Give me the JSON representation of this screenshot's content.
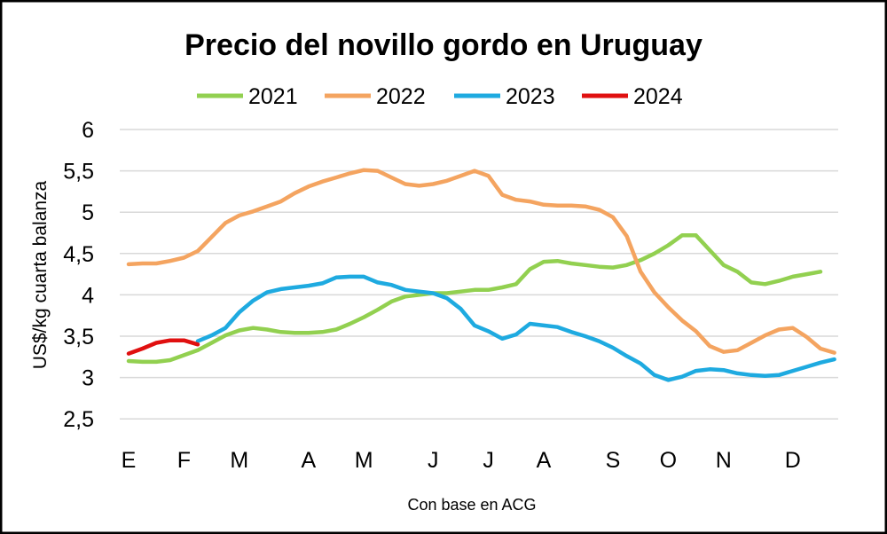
{
  "chart_data": {
    "type": "line",
    "title": "Precio del novillo gordo en Uruguay",
    "ylabel": "US$/kg cuarta balanza",
    "xlabel": "",
    "source_note": "Con base en ACG",
    "ylim": [
      2.5,
      6
    ],
    "yticks": [
      "2,5",
      "3",
      "3,5",
      "4",
      "4,5",
      "5",
      "5,5",
      "6"
    ],
    "ytick_values": [
      2.5,
      3,
      3.5,
      4,
      4.5,
      5,
      5.5,
      6
    ],
    "x_unit": "week of year",
    "xlim": [
      1,
      52
    ],
    "xticks": [
      {
        "label": "E",
        "week": 1
      },
      {
        "label": "F",
        "week": 5
      },
      {
        "label": "M",
        "week": 9
      },
      {
        "label": "A",
        "week": 14
      },
      {
        "label": "M",
        "week": 18
      },
      {
        "label": "J",
        "week": 23
      },
      {
        "label": "J",
        "week": 27
      },
      {
        "label": "A",
        "week": 31
      },
      {
        "label": "S",
        "week": 36
      },
      {
        "label": "O",
        "week": 40
      },
      {
        "label": "N",
        "week": 44
      },
      {
        "label": "D",
        "week": 49
      }
    ],
    "grid": true,
    "legend_position": "top",
    "series": [
      {
        "name": "2021",
        "color": "#92D050",
        "start_week": 1,
        "values": [
          3.2,
          3.19,
          3.19,
          3.21,
          3.27,
          3.33,
          3.42,
          3.51,
          3.57,
          3.6,
          3.58,
          3.55,
          3.54,
          3.54,
          3.55,
          3.58,
          3.65,
          3.73,
          3.82,
          3.92,
          3.98,
          4.0,
          4.02,
          4.02,
          4.04,
          4.06,
          4.06,
          4.09,
          4.13,
          4.31,
          4.4,
          4.41,
          4.38,
          4.36,
          4.34,
          4.33,
          4.36,
          4.42,
          4.5,
          4.6,
          4.72,
          4.72,
          4.54,
          4.36,
          4.28,
          4.15,
          4.13,
          4.17,
          4.22,
          4.25,
          4.28
        ]
      },
      {
        "name": "2022",
        "color": "#F4A460",
        "start_week": 1,
        "values": [
          4.37,
          4.38,
          4.38,
          4.41,
          4.45,
          4.53,
          4.7,
          4.87,
          4.96,
          5.01,
          5.07,
          5.13,
          5.23,
          5.31,
          5.37,
          5.42,
          5.47,
          5.51,
          5.5,
          5.42,
          5.34,
          5.32,
          5.34,
          5.38,
          5.44,
          5.5,
          5.44,
          5.21,
          5.15,
          5.13,
          5.09,
          5.08,
          5.08,
          5.07,
          5.03,
          4.94,
          4.71,
          4.28,
          4.03,
          3.85,
          3.69,
          3.56,
          3.38,
          3.31,
          3.33,
          3.42,
          3.51,
          3.58,
          3.6,
          3.49,
          3.35,
          3.3
        ]
      },
      {
        "name": "2023",
        "color": "#1EAAE0",
        "start_week": 6,
        "values": [
          3.44,
          3.51,
          3.6,
          3.79,
          3.93,
          4.03,
          4.07,
          4.09,
          4.11,
          4.14,
          4.21,
          4.22,
          4.22,
          4.15,
          4.12,
          4.06,
          4.04,
          4.02,
          3.96,
          3.83,
          3.63,
          3.56,
          3.47,
          3.52,
          3.65,
          3.63,
          3.61,
          3.55,
          3.5,
          3.44,
          3.36,
          3.26,
          3.17,
          3.03,
          2.97,
          3.01,
          3.08,
          3.1,
          3.09,
          3.05,
          3.03,
          3.02,
          3.03,
          3.08,
          3.13,
          3.18,
          3.22
        ]
      },
      {
        "name": "2024",
        "color": "#E01010",
        "start_week": 1,
        "values": [
          3.29,
          3.35,
          3.42,
          3.45,
          3.45,
          3.4
        ]
      }
    ]
  }
}
